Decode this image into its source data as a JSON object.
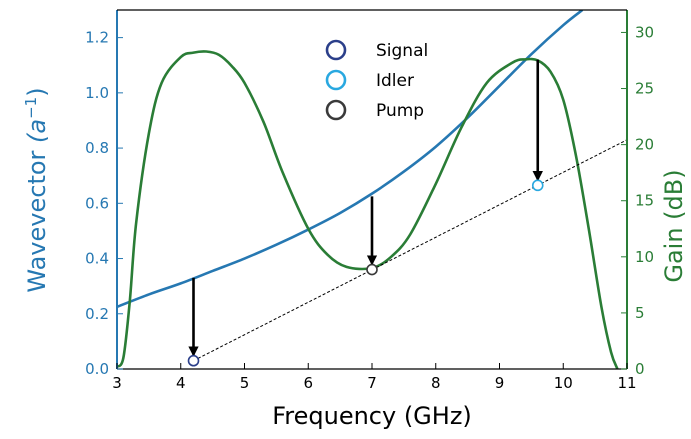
{
  "chart_data": {
    "type": "line",
    "xlabel": "Frequency (GHz)",
    "ylabel_left_text": "Wavevector ",
    "ylabel_left_math": "(a",
    "ylabel_left_sup": "−1",
    "ylabel_left_close": ")",
    "ylabel_right": "Gain (dB)",
    "xlim": [
      3,
      11
    ],
    "ylim_left": [
      0,
      1.3
    ],
    "ylim_right": [
      0,
      32
    ],
    "x_ticks": [
      3,
      4,
      5,
      6,
      7,
      8,
      9,
      10,
      11
    ],
    "y_left_ticks": [
      "0.0",
      "0.2",
      "0.4",
      "0.6",
      "0.8",
      "1.0",
      "1.2"
    ],
    "y_right_ticks": [
      "0",
      "5",
      "10",
      "15",
      "20",
      "25",
      "30"
    ],
    "colors": {
      "wavevector": "#2678b2",
      "gain": "#2a7d36",
      "signal": "#2b3f8a",
      "idler": "#29a8e0",
      "pump": "#3a3a3a",
      "arrow": "#000000"
    },
    "legend": {
      "placement": "top-center",
      "entries": [
        {
          "name": "Signal",
          "color": "#2b3f8a"
        },
        {
          "name": "Idler",
          "color": "#29a8e0"
        },
        {
          "name": "Pump",
          "color": "#3a3a3a"
        }
      ]
    },
    "series": [
      {
        "name": "Wavevector",
        "axis": "left",
        "x": [
          3.0,
          3.5,
          4.0,
          4.5,
          5.0,
          5.5,
          6.0,
          6.5,
          7.0,
          7.5,
          8.0,
          8.5,
          9.0,
          9.5,
          10.0,
          10.3
        ],
        "y": [
          0.225,
          0.27,
          0.31,
          0.355,
          0.4,
          0.45,
          0.505,
          0.565,
          0.635,
          0.715,
          0.805,
          0.91,
          1.025,
          1.14,
          1.245,
          1.3
        ]
      },
      {
        "name": "Gain",
        "axis": "right",
        "x": [
          3.0,
          3.1,
          3.2,
          3.3,
          3.5,
          3.7,
          4.0,
          4.2,
          4.4,
          4.6,
          4.8,
          5.0,
          5.3,
          5.6,
          6.0,
          6.3,
          6.6,
          7.0,
          7.3,
          7.6,
          8.0,
          8.4,
          8.8,
          9.2,
          9.4,
          9.6,
          9.8,
          10.0,
          10.2,
          10.4,
          10.6,
          10.75,
          10.85
        ],
        "y": [
          0.2,
          1.0,
          6.0,
          13.0,
          21.0,
          25.5,
          27.8,
          28.2,
          28.3,
          28.0,
          27.0,
          25.5,
          22.0,
          17.5,
          12.5,
          10.2,
          9.1,
          9.0,
          10.0,
          12.0,
          16.5,
          21.5,
          25.5,
          27.3,
          27.6,
          27.5,
          26.5,
          24.0,
          19.0,
          12.5,
          5.5,
          1.5,
          0.0
        ]
      },
      {
        "name": "Idler line",
        "axis": "left",
        "style": "dashed",
        "x": [
          4.2,
          11.0
        ],
        "y": [
          0.03,
          0.83
        ]
      }
    ],
    "points": [
      {
        "name": "Signal",
        "x": 4.2,
        "y": 0.03,
        "color": "#2b3f8a"
      },
      {
        "name": "Pump",
        "x": 7.0,
        "y": 0.36,
        "color": "#3a3a3a"
      },
      {
        "name": "Idler",
        "x": 9.6,
        "y": 0.665,
        "color": "#29a8e0"
      }
    ],
    "arrows": [
      {
        "x": 4.2,
        "y_from": 0.33,
        "y_to": 0.03
      },
      {
        "x": 7.0,
        "y_from": 0.625,
        "y_to": 0.36
      },
      {
        "x": 9.6,
        "y_from": 1.12,
        "y_to": 0.665
      }
    ]
  }
}
